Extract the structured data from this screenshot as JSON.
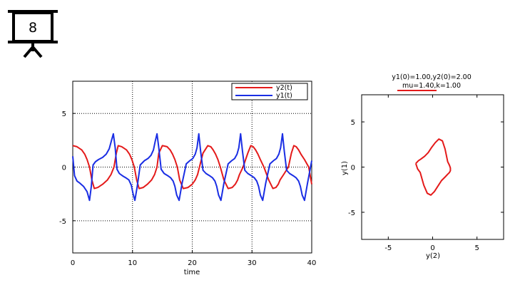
{
  "slide_badge": {
    "number": "8",
    "icon": "projector-screen-icon"
  },
  "colors": {
    "y2": "#e41a1a",
    "y1": "#1a2ee4",
    "grid": "#000000"
  },
  "chart_data": [
    {
      "type": "line",
      "xlabel": "time",
      "ylabel": "",
      "xlim": [
        0,
        40
      ],
      "ylim": [
        -8,
        8
      ],
      "xticks": [
        "0",
        "10",
        "20",
        "30",
        "40"
      ],
      "yticks": [
        "-5",
        "0",
        "5"
      ],
      "grid": true,
      "legend_position": "top-right",
      "series": [
        {
          "name": "y2(t)",
          "color": "#e41a1a",
          "t": [
            0.0,
            0.7,
            1.5,
            2.0,
            2.4,
            2.8,
            3.2,
            3.6,
            4.2,
            5.0,
            5.8,
            6.4,
            6.9,
            7.3,
            7.6,
            8.2,
            9.0,
            9.5,
            9.9,
            10.3,
            10.7,
            11.1,
            11.8,
            12.5,
            13.2,
            13.7,
            14.1,
            14.4,
            15.0,
            15.8,
            16.3,
            16.7,
            17.1,
            17.5,
            17.9,
            18.5,
            19.3,
            20.0,
            20.5,
            20.9,
            21.2,
            21.8,
            22.6,
            23.1,
            23.5,
            23.9,
            24.3,
            24.7,
            25.3,
            26.0,
            26.7,
            27.2,
            27.6,
            27.9,
            28.5,
            29.3,
            29.8,
            30.2,
            30.6,
            31.0,
            31.4,
            32.0,
            32.8,
            33.5,
            34.0,
            34.4,
            34.7,
            35.3,
            36.1,
            36.6,
            37.0,
            37.4,
            37.8,
            38.2,
            38.8,
            39.5,
            40.0
          ],
          "values": [
            2.0,
            1.9,
            1.6,
            1.2,
            0.7,
            0.0,
            -1.2,
            -2.0,
            -1.9,
            -1.6,
            -1.2,
            -0.7,
            0.0,
            1.3,
            2.0,
            1.9,
            1.6,
            1.2,
            0.7,
            0.0,
            -1.2,
            -2.0,
            -1.9,
            -1.6,
            -1.2,
            -0.7,
            0.0,
            1.3,
            2.0,
            1.9,
            1.6,
            1.2,
            0.7,
            0.0,
            -1.2,
            -2.0,
            -1.9,
            -1.6,
            -1.2,
            -0.7,
            0.0,
            1.3,
            2.0,
            1.9,
            1.6,
            1.2,
            0.7,
            0.0,
            -1.2,
            -2.0,
            -1.9,
            -1.6,
            -1.2,
            -0.7,
            0.0,
            1.3,
            2.0,
            1.9,
            1.6,
            1.2,
            0.7,
            0.0,
            -1.2,
            -2.0,
            -1.9,
            -1.6,
            -1.2,
            -0.7,
            0.0,
            1.3,
            2.0,
            1.9,
            1.6,
            1.2,
            0.7,
            0.0,
            -1.6
          ]
        },
        {
          "name": "y1(t)",
          "color": "#1a2ee4",
          "t": [
            0.0,
            0.3,
            0.7,
            1.2,
            1.8,
            2.4,
            2.8,
            3.1,
            3.4,
            3.8,
            4.3,
            5.0,
            5.6,
            6.1,
            6.5,
            6.8,
            7.1,
            7.4,
            7.8,
            8.3,
            8.9,
            9.4,
            9.8,
            10.1,
            10.4,
            10.8,
            11.3,
            12.0,
            12.6,
            13.1,
            13.5,
            13.8,
            14.1,
            14.4,
            14.8,
            15.3,
            15.9,
            16.4,
            16.8,
            17.1,
            17.4,
            17.8,
            18.3,
            19.0,
            19.6,
            20.1,
            20.5,
            20.8,
            21.1,
            21.4,
            21.8,
            22.3,
            22.9,
            23.4,
            23.8,
            24.1,
            24.4,
            24.8,
            25.3,
            26.0,
            26.6,
            27.1,
            27.5,
            27.8,
            28.1,
            28.4,
            28.8,
            29.3,
            29.9,
            30.4,
            30.8,
            31.1,
            31.4,
            31.8,
            32.3,
            33.0,
            33.6,
            34.1,
            34.5,
            34.8,
            35.1,
            35.4,
            35.8,
            36.3,
            36.9,
            37.4,
            37.8,
            38.1,
            38.4,
            38.8,
            39.3,
            40.0
          ],
          "values": [
            1.0,
            -0.8,
            -1.3,
            -1.5,
            -1.8,
            -2.3,
            -3.1,
            -1.8,
            0.2,
            0.5,
            0.7,
            0.9,
            1.2,
            1.7,
            2.5,
            3.1,
            1.8,
            -0.2,
            -0.6,
            -0.8,
            -1.0,
            -1.2,
            -1.7,
            -2.5,
            -3.1,
            -1.8,
            0.2,
            0.6,
            0.8,
            1.1,
            1.6,
            2.4,
            3.1,
            1.8,
            -0.2,
            -0.6,
            -0.8,
            -1.0,
            -1.3,
            -1.8,
            -2.6,
            -3.1,
            -1.5,
            0.3,
            0.6,
            0.8,
            1.2,
            1.8,
            3.1,
            1.5,
            -0.3,
            -0.6,
            -0.8,
            -1.0,
            -1.3,
            -1.8,
            -2.6,
            -3.1,
            -1.5,
            0.3,
            0.6,
            0.8,
            1.2,
            1.8,
            3.1,
            1.5,
            -0.3,
            -0.6,
            -0.8,
            -1.0,
            -1.3,
            -1.8,
            -2.6,
            -3.1,
            -1.5,
            0.3,
            0.6,
            0.8,
            1.2,
            1.8,
            3.1,
            1.5,
            -0.3,
            -0.6,
            -0.8,
            -1.0,
            -1.3,
            -1.8,
            -2.6,
            -3.1,
            -1.5,
            0.6
          ]
        }
      ]
    },
    {
      "type": "line",
      "title": "y1(0)=1.00,y2(0)=2.00",
      "subtitle": "mu=1.40,k=1.00",
      "xlabel": "y(2)",
      "ylabel": "y(1)",
      "xlim": [
        -8,
        8
      ],
      "ylim": [
        -8,
        8
      ],
      "xticks": [
        "-5",
        "0",
        "5"
      ],
      "yticks": [
        "-5",
        "0",
        "5"
      ],
      "grid": false,
      "series": [
        {
          "color": "#e41a1a",
          "x": [
            -1.9,
            -1.8,
            -1.6,
            -1.3,
            -0.9,
            -0.5,
            -0.1,
            0.3,
            0.7,
            1.1,
            1.4,
            1.7,
            1.9,
            2.0,
            2.0,
            1.9,
            1.7,
            1.4,
            1.0,
            0.6,
            0.2,
            -0.2,
            -0.6,
            -1.0,
            -1.4,
            -1.7,
            -1.9
          ],
          "y": [
            0.4,
            0.5,
            0.7,
            0.9,
            1.2,
            1.6,
            2.2,
            2.7,
            3.1,
            2.9,
            2.0,
            0.6,
            0.2,
            -0.1,
            -0.4,
            -0.6,
            -0.8,
            -1.1,
            -1.5,
            -2.1,
            -2.7,
            -3.1,
            -2.9,
            -2.0,
            -0.6,
            -0.2,
            0.4
          ]
        }
      ]
    }
  ]
}
